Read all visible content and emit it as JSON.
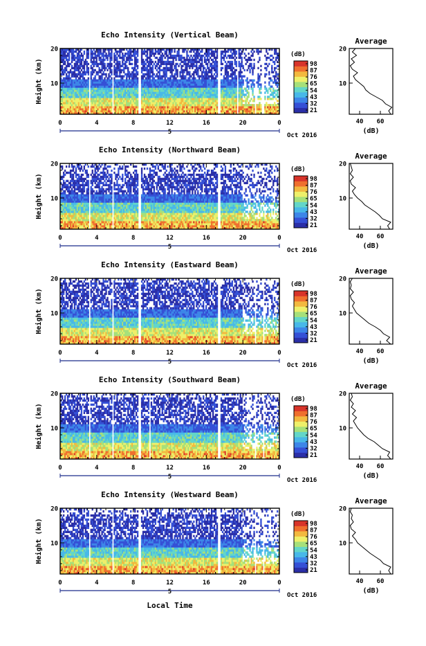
{
  "figure": {
    "xlabel": "Local Time",
    "colors": [
      "#2b2fa8",
      "#3550d6",
      "#3d86e8",
      "#48b8e8",
      "#63d6c8",
      "#a6e07a",
      "#eef06a",
      "#f2b93f",
      "#ef6f2e",
      "#d8342a"
    ]
  },
  "chart_data": [
    {
      "type": "heatmap",
      "title": "Echo Intensity (Vertical Beam)",
      "ylabel": "Height (km)",
      "yticks": [
        "20",
        "10"
      ],
      "xticks": [
        "0",
        "4",
        "8",
        "12",
        "16",
        "20",
        "0"
      ],
      "xlim": [
        0,
        24
      ],
      "ylim": [
        1,
        20
      ],
      "day_label": "5",
      "month_label": "Oct 2016",
      "colorbar_unit": "(dB)",
      "colorbar_ticks": [
        "98",
        "87",
        "76",
        "65",
        "54",
        "43",
        "32",
        "21"
      ],
      "gaps": [
        [
          3.1,
          3.3
        ],
        [
          5.7,
          5.9
        ],
        [
          8.5,
          8.8
        ],
        [
          17.3,
          17.6
        ],
        [
          19.3,
          19.5
        ],
        [
          21.3,
          21.4
        ],
        [
          22.1,
          22.3
        ],
        [
          23.2,
          23.3
        ]
      ],
      "noise_top": 20,
      "avg": {
        "title": "Average",
        "unit_label": "(dB)",
        "xticks": [
          "40",
          "60"
        ],
        "yticks": [
          "20",
          "10"
        ],
        "xlim": [
          30,
          72
        ],
        "profile": [
          [
            1,
            70
          ],
          [
            2,
            68
          ],
          [
            3,
            71
          ],
          [
            4,
            65
          ],
          [
            5,
            62
          ],
          [
            6,
            56
          ],
          [
            7,
            50
          ],
          [
            8,
            46
          ],
          [
            9,
            44
          ],
          [
            10,
            40
          ],
          [
            11,
            36
          ],
          [
            12,
            34
          ],
          [
            13,
            38
          ],
          [
            14,
            33
          ],
          [
            15,
            31
          ],
          [
            16,
            35
          ],
          [
            17,
            32
          ],
          [
            18,
            37
          ],
          [
            19,
            33
          ],
          [
            20,
            36
          ]
        ]
      }
    },
    {
      "type": "heatmap",
      "title": "Echo Intensity (Northward Beam)",
      "ylabel": "Height (km)",
      "yticks": [
        "20",
        "10"
      ],
      "xticks": [
        "0",
        "4",
        "8",
        "12",
        "16",
        "20",
        "0"
      ],
      "xlim": [
        0,
        24
      ],
      "ylim": [
        1,
        20
      ],
      "day_label": "5",
      "month_label": "Oct 2016",
      "colorbar_unit": "(dB)",
      "colorbar_ticks": [
        "98",
        "87",
        "76",
        "65",
        "54",
        "43",
        "32",
        "21"
      ],
      "gaps": [
        [
          3.1,
          3.3
        ],
        [
          5.7,
          5.9
        ],
        [
          8.6,
          8.9
        ],
        [
          17.3,
          17.6
        ]
      ],
      "noise_top": 17,
      "avg": {
        "title": "Average",
        "unit_label": "(dB)",
        "xticks": [
          "40",
          "60"
        ],
        "yticks": [
          "20",
          "10"
        ],
        "xlim": [
          30,
          72
        ],
        "profile": [
          [
            1,
            69
          ],
          [
            2,
            67
          ],
          [
            3,
            70
          ],
          [
            4,
            62
          ],
          [
            5,
            59
          ],
          [
            6,
            55
          ],
          [
            7,
            50
          ],
          [
            8,
            45
          ],
          [
            9,
            42
          ],
          [
            10,
            38
          ],
          [
            11,
            35
          ],
          [
            12,
            33
          ],
          [
            13,
            36
          ],
          [
            14,
            32
          ],
          [
            15,
            31
          ],
          [
            16,
            34
          ],
          [
            17,
            31
          ],
          [
            18,
            33
          ],
          [
            19,
            32
          ],
          [
            20,
            31
          ]
        ]
      }
    },
    {
      "type": "heatmap",
      "title": "Echo Intensity (Eastward Beam)",
      "ylabel": "Height (km)",
      "yticks": [
        "20",
        "10"
      ],
      "xticks": [
        "0",
        "4",
        "8",
        "12",
        "16",
        "20",
        "0"
      ],
      "xlim": [
        0,
        24
      ],
      "ylim": [
        1,
        20
      ],
      "day_label": "5",
      "month_label": "Oct 2016",
      "colorbar_unit": "(dB)",
      "colorbar_ticks": [
        "98",
        "87",
        "76",
        "65",
        "54",
        "43",
        "32",
        "21"
      ],
      "gaps": [
        [
          3.1,
          3.3
        ],
        [
          5.7,
          5.9
        ],
        [
          8.6,
          8.9
        ],
        [
          17.3,
          17.6
        ],
        [
          21.3,
          21.5
        ],
        [
          22.2,
          22.4
        ]
      ],
      "noise_top": 19,
      "avg": {
        "title": "Average",
        "unit_label": "(dB)",
        "xticks": [
          "40",
          "60"
        ],
        "yticks": [
          "20",
          "10"
        ],
        "xlim": [
          30,
          72
        ],
        "profile": [
          [
            1,
            70
          ],
          [
            2,
            66
          ],
          [
            3,
            69
          ],
          [
            4,
            63
          ],
          [
            5,
            60
          ],
          [
            6,
            55
          ],
          [
            7,
            49
          ],
          [
            8,
            45
          ],
          [
            9,
            41
          ],
          [
            10,
            37
          ],
          [
            11,
            35
          ],
          [
            12,
            33
          ],
          [
            13,
            35
          ],
          [
            14,
            32
          ],
          [
            15,
            31
          ],
          [
            16,
            34
          ],
          [
            17,
            31
          ],
          [
            18,
            32
          ],
          [
            19,
            31
          ],
          [
            20,
            33
          ]
        ]
      }
    },
    {
      "type": "heatmap",
      "title": "Echo Intensity (Southward Beam)",
      "ylabel": "Height (km)",
      "yticks": [
        "20",
        "10"
      ],
      "xticks": [
        "0",
        "4",
        "8",
        "12",
        "16",
        "20",
        "0"
      ],
      "xlim": [
        0,
        24
      ],
      "ylim": [
        1,
        20
      ],
      "day_label": "5",
      "month_label": "Oct 2016",
      "colorbar_unit": "(dB)",
      "colorbar_ticks": [
        "98",
        "87",
        "76",
        "65",
        "54",
        "43",
        "32",
        "21"
      ],
      "gaps": [
        [
          3.1,
          3.3
        ],
        [
          5.7,
          5.9
        ],
        [
          8.6,
          8.8
        ],
        [
          9.7,
          9.9
        ],
        [
          17.3,
          17.6
        ],
        [
          21.3,
          21.5
        ],
        [
          22.2,
          22.4
        ]
      ],
      "noise_top": 19,
      "avg": {
        "title": "Average",
        "unit_label": "(dB)",
        "xticks": [
          "40",
          "60"
        ],
        "yticks": [
          "20",
          "10"
        ],
        "xlim": [
          30,
          72
        ],
        "profile": [
          [
            1,
            70
          ],
          [
            2,
            67
          ],
          [
            3,
            69
          ],
          [
            4,
            62
          ],
          [
            5,
            58
          ],
          [
            6,
            54
          ],
          [
            7,
            48
          ],
          [
            8,
            44
          ],
          [
            9,
            41
          ],
          [
            10,
            38
          ],
          [
            11,
            36
          ],
          [
            12,
            34
          ],
          [
            13,
            37
          ],
          [
            14,
            33
          ],
          [
            15,
            36
          ],
          [
            16,
            32
          ],
          [
            17,
            34
          ],
          [
            18,
            31
          ],
          [
            19,
            33
          ],
          [
            20,
            32
          ]
        ]
      }
    },
    {
      "type": "heatmap",
      "title": "Echo Intensity (Westward Beam)",
      "ylabel": "Height (km)",
      "yticks": [
        "20",
        "10"
      ],
      "xticks": [
        "0",
        "4",
        "8",
        "12",
        "16",
        "20",
        "0"
      ],
      "xlim": [
        0,
        24
      ],
      "ylim": [
        1,
        20
      ],
      "day_label": "5",
      "month_label": "Oct 2016",
      "colorbar_unit": "(dB)",
      "colorbar_ticks": [
        "98",
        "87",
        "76",
        "65",
        "54",
        "43",
        "32",
        "21"
      ],
      "gaps": [
        [
          3.1,
          3.3
        ],
        [
          5.7,
          5.9
        ],
        [
          8.6,
          8.9
        ],
        [
          17.3,
          17.6
        ],
        [
          21.3,
          21.5
        ],
        [
          22.2,
          22.4
        ]
      ],
      "noise_top": 18,
      "avg": {
        "title": "Average",
        "unit_label": "(dB)",
        "xticks": [
          "40",
          "60"
        ],
        "yticks": [
          "20",
          "10"
        ],
        "xlim": [
          30,
          72
        ],
        "profile": [
          [
            1,
            70
          ],
          [
            2,
            68
          ],
          [
            3,
            70
          ],
          [
            4,
            63
          ],
          [
            5,
            60
          ],
          [
            6,
            55
          ],
          [
            7,
            50
          ],
          [
            8,
            46
          ],
          [
            9,
            42
          ],
          [
            10,
            38
          ],
          [
            11,
            36
          ],
          [
            12,
            33
          ],
          [
            13,
            36
          ],
          [
            14,
            32
          ],
          [
            15,
            31
          ],
          [
            16,
            34
          ],
          [
            17,
            32
          ],
          [
            18,
            33
          ],
          [
            19,
            31
          ],
          [
            20,
            32
          ]
        ]
      }
    }
  ]
}
